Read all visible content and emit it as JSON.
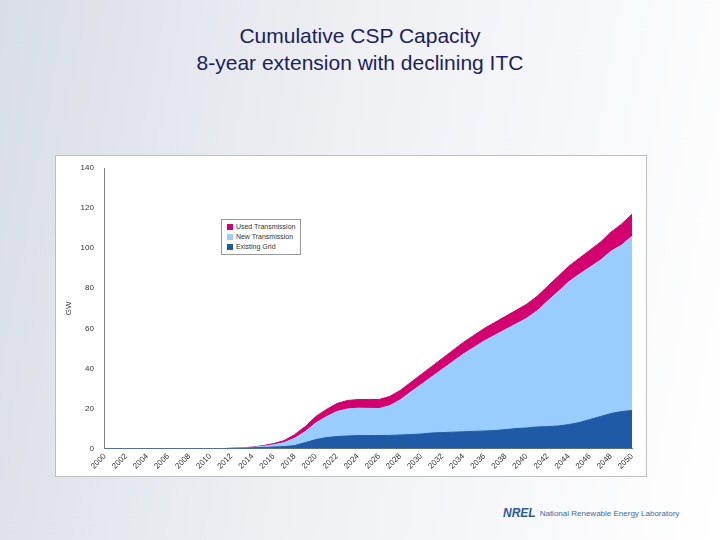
{
  "chart_data": {
    "type": "area",
    "title": "Cumulative CSP Capacity",
    "subtitle": "8-year extension with declining ITC",
    "y_label": "GW",
    "categories": [
      "2000",
      null,
      "2002",
      null,
      "2004",
      null,
      "2006",
      null,
      "2008",
      null,
      "2010",
      null,
      "2012",
      null,
      "2014",
      null,
      "2016",
      null,
      "2018",
      null,
      "2020",
      null,
      "2022",
      null,
      "2024",
      null,
      "2026",
      null,
      "2028",
      null,
      "2030",
      null,
      "2032",
      null,
      "2034",
      null,
      "2036",
      null,
      "2038",
      null,
      "2040",
      null,
      "2042",
      null,
      "2044",
      null,
      "2046",
      null,
      "2048",
      null,
      "2050"
    ],
    "series": [
      {
        "name": "Existing Grid",
        "color": "#1f5aa6",
        "values": [
          0,
          0,
          0,
          0,
          0,
          0,
          0,
          0,
          0,
          0,
          0,
          0,
          0.1,
          0.2,
          0.4,
          0.6,
          0.8,
          1,
          1.5,
          3,
          4.5,
          5.5,
          6,
          6.3,
          6.5,
          6.5,
          6.5,
          6.6,
          6.8,
          7,
          7.3,
          7.8,
          8,
          8.2,
          8.4,
          8.6,
          8.8,
          9,
          9.5,
          10,
          10.3,
          10.8,
          11,
          11.3,
          12,
          13,
          14.5,
          16,
          17.5,
          18.5,
          19
        ]
      },
      {
        "name": "New Transmission",
        "color": "#99ccff",
        "values": [
          0,
          0,
          0,
          0,
          0,
          0,
          0,
          0,
          0,
          0,
          0,
          0,
          0.1,
          0.2,
          0.3,
          0.6,
          1.1,
          2,
          3.7,
          5.5,
          8.3,
          10.4,
          12.5,
          13.5,
          13.7,
          13.6,
          13.5,
          14.8,
          17.5,
          21.2,
          24.7,
          28,
          31.6,
          35.2,
          38.8,
          41.9,
          45,
          47.6,
          49.9,
          52.2,
          54.7,
          58,
          62.6,
          67.1,
          71.2,
          74,
          76,
          78,
          81,
          83,
          87
        ]
      },
      {
        "name": "Used Transmission",
        "color": "#d4006f",
        "values": [
          0,
          0,
          0,
          0,
          0,
          0,
          0,
          0,
          0,
          0,
          0,
          0,
          0,
          0,
          0.1,
          0.3,
          0.6,
          1,
          1.8,
          2.5,
          3.2,
          3.6,
          4,
          4.2,
          4.3,
          4.4,
          4.5,
          4.6,
          4.7,
          4.8,
          5,
          5.2,
          5.4,
          5.6,
          5.8,
          6,
          6.2,
          6.4,
          6.6,
          6.8,
          7,
          7.2,
          7.4,
          7.6,
          7.8,
          8,
          8.5,
          9,
          9.5,
          10.5,
          11
        ]
      }
    ],
    "ylim": [
      0,
      140
    ],
    "yticks": [
      0,
      20,
      40,
      60,
      80,
      100,
      120,
      140
    ],
    "stacked": true,
    "grid": false,
    "legend": "upper left"
  },
  "footer": {
    "logo": "NREL",
    "text": "National Renewable Energy Laboratory"
  }
}
